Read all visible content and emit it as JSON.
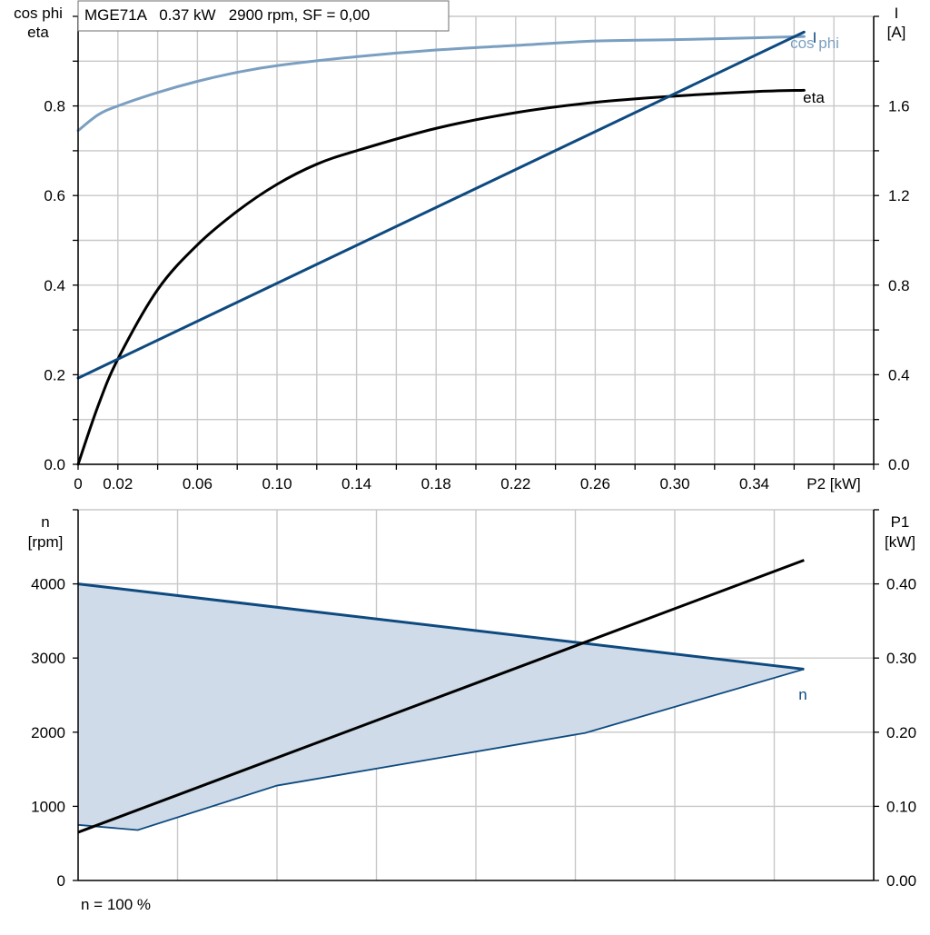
{
  "title_box": {
    "text": "MGE71A   0.37 kW   2900 rpm, SF = 0,00"
  },
  "footnote": "n = 100 %",
  "colors": {
    "cos_phi": "#7a9fc1",
    "eta": "#000000",
    "current": "#0e4a80",
    "speed": "#0e4a80",
    "speed_band_fill": "#cfdbe8",
    "power_in": "#000000",
    "grid": "#c8c8c8"
  },
  "chart_data": [
    {
      "type": "line",
      "x_label": "P2 [kW]",
      "x_ticks": [
        "0",
        "0.02",
        "0.06",
        "0.10",
        "0.14",
        "0.18",
        "0.22",
        "0.26",
        "0.30",
        "0.34"
      ],
      "xlim": [
        0,
        0.4
      ],
      "y_left_label_line1": "cos phi",
      "y_left_label_line2": "eta",
      "y_left_ticks": [
        "0.0",
        "0.2",
        "0.4",
        "0.6",
        "0.8"
      ],
      "ylim_left": [
        0,
        1.0
      ],
      "y_right_label_line1": "I",
      "y_right_label_line2": "[A]",
      "y_right_ticks": [
        "0.0",
        "0.4",
        "0.8",
        "1.2",
        "1.6"
      ],
      "ylim_right": [
        0,
        2.0
      ],
      "grid": true,
      "series": [
        {
          "name": "cos phi",
          "axis": "left",
          "x": [
            0,
            0.01,
            0.02,
            0.04,
            0.06,
            0.08,
            0.1,
            0.14,
            0.18,
            0.22,
            0.26,
            0.3,
            0.34,
            0.365
          ],
          "y": [
            0.745,
            0.78,
            0.8,
            0.83,
            0.855,
            0.875,
            0.89,
            0.91,
            0.925,
            0.935,
            0.945,
            0.948,
            0.952,
            0.955
          ]
        },
        {
          "name": "eta",
          "axis": "left",
          "x": [
            0,
            0.01,
            0.02,
            0.04,
            0.06,
            0.08,
            0.1,
            0.12,
            0.14,
            0.18,
            0.22,
            0.26,
            0.3,
            0.34,
            0.365
          ],
          "y": [
            0,
            0.13,
            0.235,
            0.39,
            0.49,
            0.565,
            0.625,
            0.67,
            0.7,
            0.75,
            0.785,
            0.808,
            0.822,
            0.832,
            0.835
          ]
        },
        {
          "name": "I",
          "axis": "right",
          "x": [
            0,
            0.365
          ],
          "y": [
            0.385,
            1.93
          ]
        }
      ]
    },
    {
      "type": "line",
      "x_label": "",
      "xlim": [
        0,
        0.4
      ],
      "y_left_label_line1": "n",
      "y_left_label_line2": "[rpm]",
      "y_left_ticks": [
        "0",
        "1000",
        "2000",
        "3000",
        "4000"
      ],
      "ylim_left": [
        0,
        5000
      ],
      "y_right_label_line1": "P1",
      "y_right_label_line2": "[kW]",
      "y_right_ticks": [
        "0.00",
        "0.10",
        "0.20",
        "0.30",
        "0.40"
      ],
      "ylim_right": [
        0,
        0.5
      ],
      "grid": true,
      "series": [
        {
          "name": "n",
          "axis": "left",
          "x": [
            0,
            0.365
          ],
          "y": [
            4000,
            2850
          ]
        },
        {
          "name": "",
          "axis": "left",
          "x": [
            0,
            0.03,
            0.1,
            0.255,
            0.365
          ],
          "y": [
            750,
            680,
            1280,
            1990,
            2850
          ]
        },
        {
          "name": "",
          "axis": "right",
          "x": [
            0,
            0.365
          ],
          "y": [
            0.065,
            0.432
          ]
        }
      ]
    }
  ]
}
